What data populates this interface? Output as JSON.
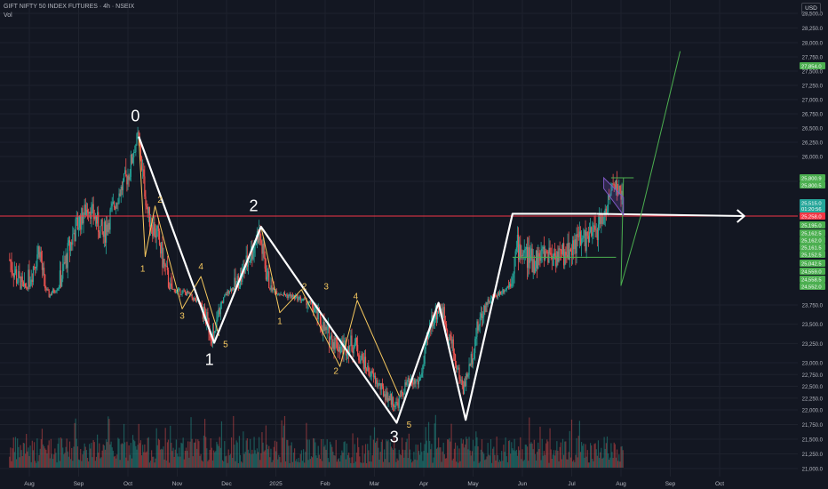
{
  "header": {
    "title": "GIFT NIFTY 50 INDEX FUTURES · 4h · NSEIX",
    "volume_label": "Vol"
  },
  "currency_label": "USD",
  "colors": {
    "background": "#131722",
    "grid": "#1e222d",
    "candle_up": "#26a69a",
    "candle_down": "#ef5350",
    "wave_primary": "#ffffff",
    "wave_minor": "#f6c85f",
    "resistance_line": "#f23645",
    "projection": "#4caf50",
    "flag": "#7e57c2"
  },
  "chart_data": {
    "type": "candlestick",
    "symbol": "GIFT NIFTY 50 INDEX FUTURES",
    "timeframe": "4h",
    "exchange": "NSEIX",
    "y_axis": {
      "min": 21000,
      "max": 28750,
      "ticks": [
        28500,
        28250,
        28000,
        27750,
        27500,
        27250,
        27000,
        26750,
        26500,
        26250,
        26000,
        25750,
        23750,
        23500,
        23250,
        23000,
        22750,
        22500,
        22250,
        22000,
        21750,
        21500,
        21250,
        21000
      ],
      "tick_labels": [
        "28,500.0",
        "28,250.0",
        "28,000.0",
        "27,750.0",
        "27,500.0",
        "27,250.0",
        "27,000.0",
        "26,750.0",
        "26,500.0",
        "26,250.0",
        "26,000.0",
        "25,750.0",
        "23,750.0",
        "23,500.0",
        "23,250.0",
        "23,000.0",
        "22,750.0",
        "22,500.0",
        "22,250.0",
        "22,000.0",
        "21,750.0",
        "21,500.0",
        "21,250.0",
        "21,000.0"
      ]
    },
    "x_axis": {
      "labels": [
        "Aug",
        "Sep",
        "Oct",
        "Nov",
        "Dec",
        "2025",
        "Feb",
        "Mar",
        "Apr",
        "May",
        "Jun",
        "Jul",
        "Aug",
        "Sep",
        "Oct"
      ],
      "positions": [
        0.4,
        1.4,
        2.4,
        3.4,
        4.4,
        5.4,
        6.4,
        7.4,
        8.4,
        9.4,
        10.4,
        11.4,
        12.4,
        13.4,
        14.4
      ]
    },
    "price_labels": [
      {
        "value": 27854.0,
        "text": "27,854.0",
        "color": "#4caf50"
      },
      {
        "value": 25800.9,
        "text": "25,800.9",
        "color": "#4caf50"
      },
      {
        "value": 25800.5,
        "text": "25,800.5",
        "color": "#4caf50"
      },
      {
        "value": 25515.0,
        "text": "25,515.0",
        "color": "#26a69a",
        "sub": "01:20:56"
      },
      {
        "value": 25258.0,
        "text": "25,258.0",
        "color": "#f23645"
      },
      {
        "value": 25195.0,
        "text": "25,195.0",
        "color": "#4caf50"
      },
      {
        "value": 25162.5,
        "text": "25,162.5",
        "color": "#4caf50"
      },
      {
        "value": 25162.0,
        "text": "25,162.0",
        "color": "#4caf50"
      },
      {
        "value": 25161.5,
        "text": "25,161.5",
        "color": "#4caf50"
      },
      {
        "value": 25152.5,
        "text": "25,152.5",
        "color": "#4caf50"
      },
      {
        "value": 25042.5,
        "text": "25,042.5",
        "color": "#4caf50"
      },
      {
        "value": 24559.0,
        "text": "24,559.0",
        "color": "#4caf50"
      },
      {
        "value": 24558.5,
        "text": "24,558.5",
        "color": "#4caf50"
      },
      {
        "value": 24552.0,
        "text": "24,552.0",
        "color": "#4caf50"
      }
    ],
    "resistance_level": 25258.0,
    "primary_wave": {
      "points": [
        [
          2.62,
          26350
        ],
        [
          4.15,
          23260
        ],
        [
          5.1,
          25150
        ],
        [
          7.85,
          21780
        ],
        [
          8.7,
          23840
        ],
        [
          9.25,
          21830
        ],
        [
          10.2,
          25290
        ],
        [
          11.9,
          25290
        ]
      ],
      "labels": [
        {
          "text": "0",
          "x": 2.55,
          "y": 26620
        },
        {
          "text": "1",
          "x": 4.05,
          "y": 22950
        },
        {
          "text": "2",
          "x": 4.95,
          "y": 25330
        },
        {
          "text": "3",
          "x": 7.8,
          "y": 21450
        }
      ]
    },
    "minor_wave_1": {
      "points": [
        [
          2.62,
          26350
        ],
        [
          2.75,
          24850
        ],
        [
          2.95,
          25400
        ],
        [
          3.5,
          23700
        ],
        [
          3.88,
          24650
        ],
        [
          4.25,
          23350
        ]
      ],
      "labels": [
        {
          "text": "1",
          "x": 2.7,
          "y": 24700
        },
        {
          "text": "2",
          "x": 3.05,
          "y": 25450
        },
        {
          "text": "3",
          "x": 3.5,
          "y": 23570
        },
        {
          "text": "4",
          "x": 3.88,
          "y": 24720
        },
        {
          "text": "5",
          "x": 4.38,
          "y": 23200
        }
      ]
    },
    "minor_wave_2": {
      "points": [
        [
          5.1,
          25150
        ],
        [
          5.48,
          23650
        ],
        [
          5.92,
          24410
        ],
        [
          6.7,
          22920
        ],
        [
          7.05,
          23950
        ],
        [
          7.9,
          22300
        ]
      ],
      "labels": [
        {
          "text": "1",
          "x": 5.48,
          "y": 23500
        },
        {
          "text": "2",
          "x": 5.98,
          "y": 24420
        },
        {
          "text": "3",
          "x": 6.42,
          "y": 24420
        },
        {
          "text": "2",
          "x": 6.62,
          "y": 22760
        },
        {
          "text": "4",
          "x": 7.02,
          "y": 24000
        },
        {
          "text": "5",
          "x": 8.1,
          "y": 21700
        }
      ]
    },
    "consolidation_box": {
      "x0": 10.2,
      "x1": 12.3,
      "top": 25258,
      "bottom": 24558
    },
    "arrow_target": {
      "x": 14.9,
      "y": 25258
    },
    "flag": {
      "x0": 12.05,
      "x1": 12.45,
      "top": 25800,
      "bottom": 25400
    },
    "projection_target": 27854.0,
    "projection_path": [
      [
        12.2,
        25800
      ],
      [
        12.65,
        25800
      ],
      [
        12.45,
        25800
      ],
      [
        12.4,
        24560
      ],
      [
        12.8,
        25258
      ],
      [
        13.6,
        27850
      ]
    ],
    "price_path": [
      [
        0.0,
        24820
      ],
      [
        0.3,
        24460
      ],
      [
        0.6,
        24950
      ],
      [
        0.8,
        24170
      ],
      [
        1.0,
        24560
      ],
      [
        1.3,
        25090
      ],
      [
        1.6,
        25400
      ],
      [
        1.9,
        25050
      ],
      [
        2.2,
        25550
      ],
      [
        2.45,
        25900
      ],
      [
        2.6,
        26350
      ],
      [
        2.8,
        25300
      ],
      [
        3.0,
        25050
      ],
      [
        3.3,
        24400
      ],
      [
        3.6,
        24250
      ],
      [
        3.9,
        23700
      ],
      [
        4.15,
        23300
      ],
      [
        4.45,
        24400
      ],
      [
        4.75,
        24700
      ],
      [
        5.05,
        25100
      ],
      [
        5.3,
        24450
      ],
      [
        5.55,
        24200
      ],
      [
        5.85,
        24050
      ],
      [
        6.1,
        23800
      ],
      [
        6.4,
        23400
      ],
      [
        6.7,
        23200
      ],
      [
        7.0,
        23250
      ],
      [
        7.3,
        22800
      ],
      [
        7.6,
        22350
      ],
      [
        7.85,
        22100
      ],
      [
        8.05,
        22550
      ],
      [
        8.3,
        22600
      ],
      [
        8.55,
        23550
      ],
      [
        8.75,
        23750
      ],
      [
        9.0,
        23150
      ],
      [
        9.2,
        22450
      ],
      [
        9.45,
        23350
      ],
      [
        9.7,
        23900
      ],
      [
        9.95,
        24300
      ],
      [
        10.15,
        24600
      ],
      [
        10.3,
        24950
      ],
      [
        10.6,
        24800
      ],
      [
        10.9,
        24900
      ],
      [
        11.2,
        24850
      ],
      [
        11.5,
        25000
      ],
      [
        11.8,
        25050
      ],
      [
        12.0,
        25200
      ],
      [
        12.15,
        25450
      ],
      [
        12.25,
        25800
      ],
      [
        12.35,
        25600
      ],
      [
        12.45,
        25515
      ]
    ],
    "volume_profile": {
      "max": 1.0
    },
    "grid": true
  }
}
